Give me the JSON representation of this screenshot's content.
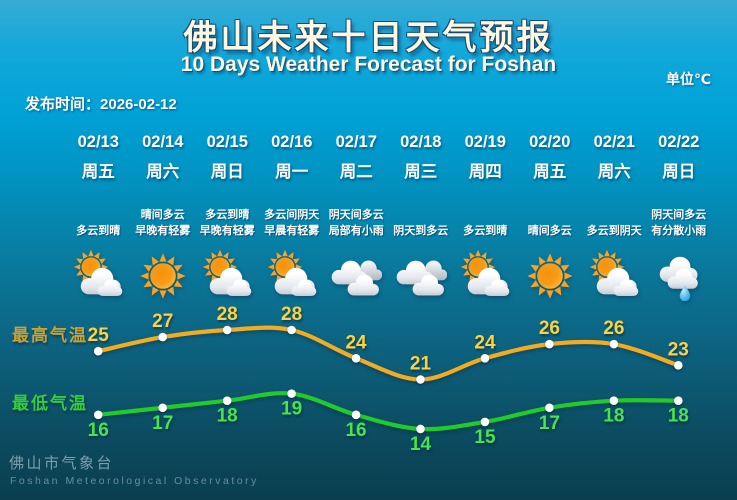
{
  "header": {
    "title": "佛山未来十日天气预报",
    "subtitle": "10 Days Weather Forecast for Foshan",
    "unit": "单位℃",
    "publish_label": "发布时间：",
    "publish_date": "2026-02-12"
  },
  "days": [
    {
      "date": "02/13",
      "weekday": "周五",
      "desc_line1": "",
      "desc_line2": "多云到晴",
      "icon": "partly-cloudy"
    },
    {
      "date": "02/14",
      "weekday": "周六",
      "desc_line1": "晴间多云",
      "desc_line2": "早晚有轻雾",
      "icon": "sunny"
    },
    {
      "date": "02/15",
      "weekday": "周日",
      "desc_line1": "多云到晴",
      "desc_line2": "早晚有轻雾",
      "icon": "partly-cloudy"
    },
    {
      "date": "02/16",
      "weekday": "周一",
      "desc_line1": "多云间阴天",
      "desc_line2": "早晨有轻雾",
      "icon": "partly-cloudy"
    },
    {
      "date": "02/17",
      "weekday": "周二",
      "desc_line1": "阴天间多云",
      "desc_line2": "局部有小雨",
      "icon": "cloudy"
    },
    {
      "date": "02/18",
      "weekday": "周三",
      "desc_line1": "",
      "desc_line2": "阴天到多云",
      "icon": "cloudy"
    },
    {
      "date": "02/19",
      "weekday": "周四",
      "desc_line1": "",
      "desc_line2": "多云到晴",
      "icon": "partly-cloudy"
    },
    {
      "date": "02/20",
      "weekday": "周五",
      "desc_line1": "",
      "desc_line2": "晴间多云",
      "icon": "sunny"
    },
    {
      "date": "02/21",
      "weekday": "周六",
      "desc_line1": "",
      "desc_line2": "多云到阴天",
      "icon": "partly-cloudy"
    },
    {
      "date": "02/22",
      "weekday": "周日",
      "desc_line1": "阴天间多云",
      "desc_line2": "有分散小雨",
      "icon": "rain"
    }
  ],
  "chart_data": {
    "type": "line",
    "title": "佛山未来十日天气预报 10 Days Weather Forecast for Foshan",
    "unit": "℃",
    "categories": [
      "02/13",
      "02/14",
      "02/15",
      "02/16",
      "02/17",
      "02/18",
      "02/19",
      "02/20",
      "02/21",
      "02/22"
    ],
    "series": [
      {
        "name": "最高气温",
        "values": [
          25,
          27,
          28,
          28,
          24,
          21,
          24,
          26,
          26,
          23
        ],
        "color": "#f3ac20",
        "label_color": "#ffd13d",
        "label_position": "above"
      },
      {
        "name": "最低气温",
        "values": [
          16,
          17,
          18,
          19,
          16,
          14,
          15,
          17,
          18,
          18
        ],
        "color": "#21cb2a",
        "label_color": "#47e44b",
        "label_position": "below"
      }
    ],
    "ylim": [
      12,
      30
    ],
    "grid": false,
    "legend_position": "left",
    "data_labels": true
  },
  "footer": {
    "name_cn": "佛山市气象台",
    "name_en": "Foshan Meteorological Observatory"
  }
}
